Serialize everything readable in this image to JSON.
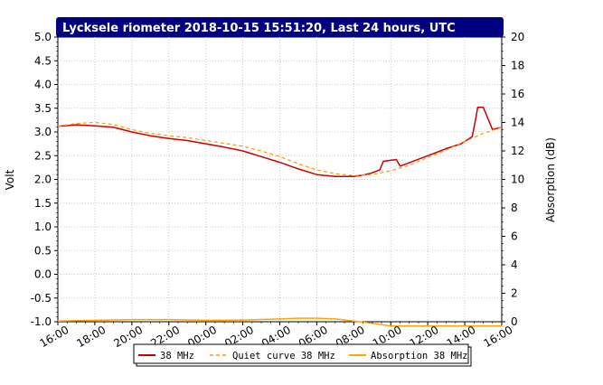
{
  "chart_data": {
    "type": "line",
    "title": "Lycksele riometer 2018-10-15 15:51:20, Last 24 hours, UTC",
    "ylabel_left": "Volt",
    "ylabel_right": "Absorption (dB)",
    "ylim_left": [
      -1.0,
      5.0
    ],
    "ylim_right": [
      0,
      20
    ],
    "y_ticks_left": [
      "-1.0",
      "-0.5",
      "0.0",
      "0.5",
      "1.0",
      "1.5",
      "2.0",
      "2.5",
      "3.0",
      "3.5",
      "4.0",
      "4.5",
      "5.0"
    ],
    "y_ticks_right": [
      "0",
      "2",
      "4",
      "6",
      "8",
      "10",
      "12",
      "14",
      "16",
      "18",
      "20"
    ],
    "x_ticks": [
      "16:00",
      "18:00",
      "20:00",
      "22:00",
      "00:00",
      "02:00",
      "04:00",
      "06:00",
      "08:00",
      "10:00",
      "12:00",
      "14:00",
      "16:00"
    ],
    "xlim_hours": [
      0,
      24
    ],
    "grid": true,
    "legend_position": "bottom",
    "series": [
      {
        "name": "38 MHz",
        "color": "#cc0000",
        "style": "solid",
        "axis": "left",
        "x": [
          0,
          1,
          2,
          3,
          4,
          5,
          6,
          7,
          8,
          9,
          10,
          11,
          12,
          13,
          14,
          15,
          16,
          16.5,
          17,
          17.4,
          17.6,
          18.3,
          18.5,
          19,
          20,
          21,
          21.8,
          22.0,
          22.4,
          22.6,
          22.7,
          23,
          23.5,
          24
        ],
        "y": [
          3.12,
          3.15,
          3.13,
          3.1,
          3.0,
          2.92,
          2.86,
          2.82,
          2.75,
          2.68,
          2.6,
          2.48,
          2.36,
          2.22,
          2.1,
          2.06,
          2.06,
          2.09,
          2.14,
          2.2,
          2.38,
          2.42,
          2.28,
          2.35,
          2.5,
          2.65,
          2.75,
          2.8,
          2.9,
          3.3,
          3.52,
          3.52,
          3.05,
          3.1
        ]
      },
      {
        "name": "Quiet curve 38 MHz",
        "color": "#ff9900",
        "style": "dashed",
        "axis": "left",
        "x": [
          0,
          1,
          2,
          3,
          4,
          5,
          6,
          7,
          8,
          9,
          10,
          11,
          12,
          13,
          14,
          15,
          16,
          17,
          18,
          19,
          20,
          21,
          22,
          23,
          24
        ],
        "y": [
          3.12,
          3.18,
          3.2,
          3.16,
          3.05,
          2.97,
          2.92,
          2.88,
          2.82,
          2.76,
          2.7,
          2.6,
          2.48,
          2.33,
          2.2,
          2.12,
          2.08,
          2.1,
          2.18,
          2.3,
          2.46,
          2.62,
          2.8,
          2.97,
          3.1
        ]
      },
      {
        "name": "Absorption 38 MHz",
        "color": "#ffa500",
        "style": "solid",
        "axis": "right",
        "x": [
          0,
          2,
          4,
          6,
          8,
          10,
          12,
          13,
          14,
          15,
          16,
          17,
          18,
          20,
          22,
          24
        ],
        "y": [
          0.05,
          0.1,
          0.15,
          0.15,
          0.1,
          0.12,
          0.2,
          0.25,
          0.25,
          0.2,
          0.05,
          -0.1,
          -0.3,
          -0.3,
          -0.3,
          -0.3
        ]
      }
    ]
  }
}
